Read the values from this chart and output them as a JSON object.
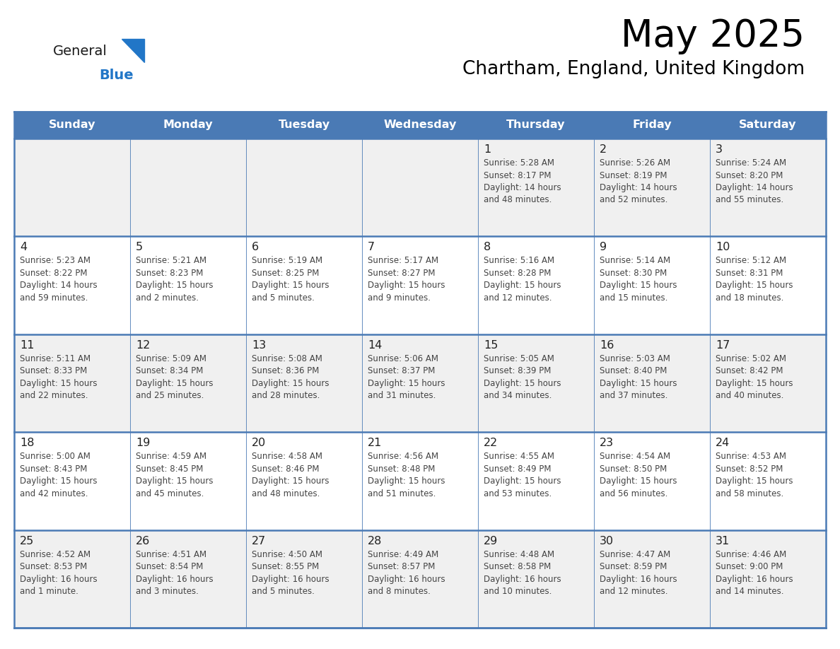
{
  "title": "May 2025",
  "subtitle": "Chartham, England, United Kingdom",
  "header_bg": "#4a7ab5",
  "header_text_color": "#FFFFFF",
  "day_names": [
    "Sunday",
    "Monday",
    "Tuesday",
    "Wednesday",
    "Thursday",
    "Friday",
    "Saturday"
  ],
  "grid_line_color": "#4a7ab5",
  "cell_bg_odd": "#f0f0f0",
  "cell_bg_even": "#ffffff",
  "title_color": "#000000",
  "subtitle_color": "#000000",
  "day_num_color": "#222222",
  "cell_text_color": "#444444",
  "logo_general_color": "#1a1a1a",
  "logo_blue_color": "#2176C7",
  "logo_triangle_color": "#2176C7",
  "weeks": [
    [
      {
        "day": "",
        "info": ""
      },
      {
        "day": "",
        "info": ""
      },
      {
        "day": "",
        "info": ""
      },
      {
        "day": "",
        "info": ""
      },
      {
        "day": "1",
        "info": "Sunrise: 5:28 AM\nSunset: 8:17 PM\nDaylight: 14 hours\nand 48 minutes."
      },
      {
        "day": "2",
        "info": "Sunrise: 5:26 AM\nSunset: 8:19 PM\nDaylight: 14 hours\nand 52 minutes."
      },
      {
        "day": "3",
        "info": "Sunrise: 5:24 AM\nSunset: 8:20 PM\nDaylight: 14 hours\nand 55 minutes."
      }
    ],
    [
      {
        "day": "4",
        "info": "Sunrise: 5:23 AM\nSunset: 8:22 PM\nDaylight: 14 hours\nand 59 minutes."
      },
      {
        "day": "5",
        "info": "Sunrise: 5:21 AM\nSunset: 8:23 PM\nDaylight: 15 hours\nand 2 minutes."
      },
      {
        "day": "6",
        "info": "Sunrise: 5:19 AM\nSunset: 8:25 PM\nDaylight: 15 hours\nand 5 minutes."
      },
      {
        "day": "7",
        "info": "Sunrise: 5:17 AM\nSunset: 8:27 PM\nDaylight: 15 hours\nand 9 minutes."
      },
      {
        "day": "8",
        "info": "Sunrise: 5:16 AM\nSunset: 8:28 PM\nDaylight: 15 hours\nand 12 minutes."
      },
      {
        "day": "9",
        "info": "Sunrise: 5:14 AM\nSunset: 8:30 PM\nDaylight: 15 hours\nand 15 minutes."
      },
      {
        "day": "10",
        "info": "Sunrise: 5:12 AM\nSunset: 8:31 PM\nDaylight: 15 hours\nand 18 minutes."
      }
    ],
    [
      {
        "day": "11",
        "info": "Sunrise: 5:11 AM\nSunset: 8:33 PM\nDaylight: 15 hours\nand 22 minutes."
      },
      {
        "day": "12",
        "info": "Sunrise: 5:09 AM\nSunset: 8:34 PM\nDaylight: 15 hours\nand 25 minutes."
      },
      {
        "day": "13",
        "info": "Sunrise: 5:08 AM\nSunset: 8:36 PM\nDaylight: 15 hours\nand 28 minutes."
      },
      {
        "day": "14",
        "info": "Sunrise: 5:06 AM\nSunset: 8:37 PM\nDaylight: 15 hours\nand 31 minutes."
      },
      {
        "day": "15",
        "info": "Sunrise: 5:05 AM\nSunset: 8:39 PM\nDaylight: 15 hours\nand 34 minutes."
      },
      {
        "day": "16",
        "info": "Sunrise: 5:03 AM\nSunset: 8:40 PM\nDaylight: 15 hours\nand 37 minutes."
      },
      {
        "day": "17",
        "info": "Sunrise: 5:02 AM\nSunset: 8:42 PM\nDaylight: 15 hours\nand 40 minutes."
      }
    ],
    [
      {
        "day": "18",
        "info": "Sunrise: 5:00 AM\nSunset: 8:43 PM\nDaylight: 15 hours\nand 42 minutes."
      },
      {
        "day": "19",
        "info": "Sunrise: 4:59 AM\nSunset: 8:45 PM\nDaylight: 15 hours\nand 45 minutes."
      },
      {
        "day": "20",
        "info": "Sunrise: 4:58 AM\nSunset: 8:46 PM\nDaylight: 15 hours\nand 48 minutes."
      },
      {
        "day": "21",
        "info": "Sunrise: 4:56 AM\nSunset: 8:48 PM\nDaylight: 15 hours\nand 51 minutes."
      },
      {
        "day": "22",
        "info": "Sunrise: 4:55 AM\nSunset: 8:49 PM\nDaylight: 15 hours\nand 53 minutes."
      },
      {
        "day": "23",
        "info": "Sunrise: 4:54 AM\nSunset: 8:50 PM\nDaylight: 15 hours\nand 56 minutes."
      },
      {
        "day": "24",
        "info": "Sunrise: 4:53 AM\nSunset: 8:52 PM\nDaylight: 15 hours\nand 58 minutes."
      }
    ],
    [
      {
        "day": "25",
        "info": "Sunrise: 4:52 AM\nSunset: 8:53 PM\nDaylight: 16 hours\nand 1 minute."
      },
      {
        "day": "26",
        "info": "Sunrise: 4:51 AM\nSunset: 8:54 PM\nDaylight: 16 hours\nand 3 minutes."
      },
      {
        "day": "27",
        "info": "Sunrise: 4:50 AM\nSunset: 8:55 PM\nDaylight: 16 hours\nand 5 minutes."
      },
      {
        "day": "28",
        "info": "Sunrise: 4:49 AM\nSunset: 8:57 PM\nDaylight: 16 hours\nand 8 minutes."
      },
      {
        "day": "29",
        "info": "Sunrise: 4:48 AM\nSunset: 8:58 PM\nDaylight: 16 hours\nand 10 minutes."
      },
      {
        "day": "30",
        "info": "Sunrise: 4:47 AM\nSunset: 8:59 PM\nDaylight: 16 hours\nand 12 minutes."
      },
      {
        "day": "31",
        "info": "Sunrise: 4:46 AM\nSunset: 9:00 PM\nDaylight: 16 hours\nand 14 minutes."
      }
    ]
  ]
}
